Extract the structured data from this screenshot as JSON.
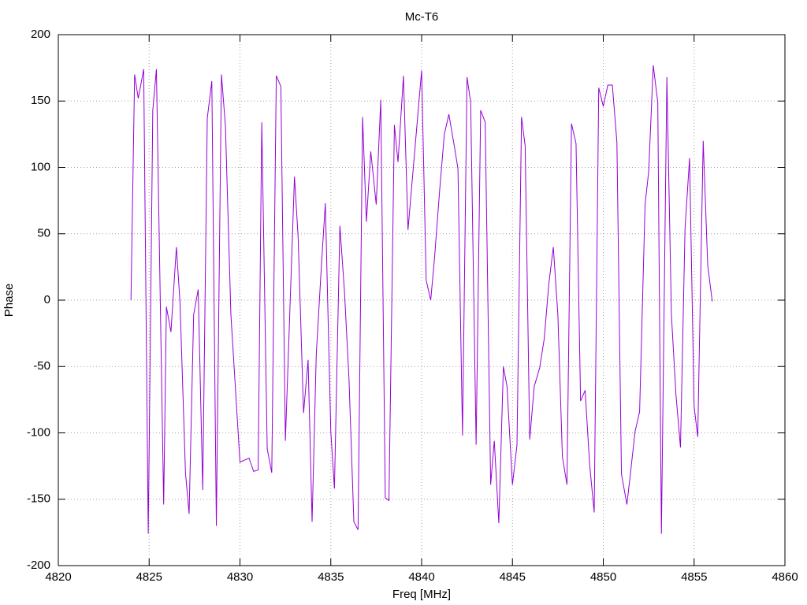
{
  "chart_data": {
    "type": "line",
    "title": "Mc-T6",
    "x_label": "Freq [MHz]",
    "y_label": "Phase",
    "x": [
      4824.0,
      4824.08,
      4824.2,
      4824.4,
      4824.7,
      4824.95,
      4825.2,
      4825.4,
      4825.8,
      4825.95,
      4826.2,
      4826.5,
      4826.7,
      4827.0,
      4827.2,
      4827.45,
      4827.7,
      4827.95,
      4828.2,
      4828.45,
      4828.7,
      4828.98,
      4829.2,
      4829.5,
      4830.0,
      4830.5,
      4830.75,
      4831.0,
      4831.2,
      4831.5,
      4831.75,
      4832.0,
      4832.25,
      4832.5,
      4833.0,
      4833.2,
      4833.5,
      4833.75,
      4833.97,
      4834.2,
      4834.5,
      4834.7,
      4835.0,
      4835.2,
      4835.5,
      4835.75,
      4836.0,
      4836.27,
      4836.5,
      4836.75,
      4836.96,
      4837.2,
      4837.5,
      4837.75,
      4838.0,
      4838.2,
      4838.5,
      4838.7,
      4839.0,
      4839.25,
      4840.0,
      4840.25,
      4840.5,
      4840.7,
      4841.0,
      4841.25,
      4841.5,
      4841.8,
      4842.0,
      4842.25,
      4842.5,
      4842.7,
      4843.0,
      4843.25,
      4843.5,
      4843.8,
      4844.0,
      4844.25,
      4844.5,
      4844.7,
      4845.0,
      4845.25,
      4845.5,
      4845.7,
      4845.95,
      4846.2,
      4846.5,
      4846.75,
      4847.0,
      4847.25,
      4847.5,
      4847.75,
      4848.0,
      4848.25,
      4848.5,
      4848.75,
      4849.0,
      4849.25,
      4849.5,
      4849.75,
      4850.0,
      4850.25,
      4850.5,
      4850.75,
      4851.0,
      4851.3,
      4851.5,
      4851.75,
      4852.0,
      4852.3,
      4852.5,
      4852.75,
      4853.0,
      4853.2,
      4853.5,
      4853.75,
      4854.0,
      4854.25,
      4854.5,
      4854.75,
      4855.0,
      4855.2,
      4855.5,
      4855.75,
      4856.0
    ],
    "series": [
      {
        "color": "#9400d3",
        "values": [
          0,
          69,
          170,
          152,
          174,
          -176,
          143,
          174,
          -154,
          -5,
          -24,
          40,
          -2,
          -130,
          -161,
          -11,
          8,
          -143,
          137,
          165,
          -170,
          170,
          131,
          -11,
          -122,
          -119,
          -129,
          -128,
          134,
          -112,
          -130,
          169,
          161,
          -106,
          93,
          48,
          -85,
          -45,
          -167,
          -41,
          30,
          73,
          -99,
          -142,
          56,
          7,
          -59,
          -167,
          -173,
          138,
          59,
          112,
          72,
          151,
          -149,
          -151,
          132,
          104,
          169,
          53,
          173,
          15,
          0,
          30,
          84,
          125,
          140,
          116,
          99,
          -102,
          168,
          149,
          -109,
          143,
          134,
          -139,
          -106,
          -168,
          -50,
          -65,
          -139,
          -109,
          138,
          116,
          -105,
          -65,
          -51,
          -29,
          12,
          40,
          -11,
          -118,
          -139,
          133,
          118,
          -76,
          -68,
          -124,
          -160,
          160,
          146,
          162,
          162,
          119,
          -131,
          -154,
          -130,
          -99,
          -84,
          72,
          97,
          177,
          149,
          -176,
          168,
          -11,
          -71,
          -111,
          54,
          107,
          -80,
          -103,
          120,
          26,
          -1
        ]
      }
    ],
    "xlim": [
      4820,
      4860
    ],
    "xticks": [
      4820,
      4825,
      4830,
      4835,
      4840,
      4845,
      4850,
      4855,
      4860
    ],
    "ylim": [
      -200,
      200
    ],
    "yticks": [
      -200,
      -150,
      -100,
      -50,
      0,
      50,
      100,
      150,
      200
    ],
    "grid": true
  }
}
